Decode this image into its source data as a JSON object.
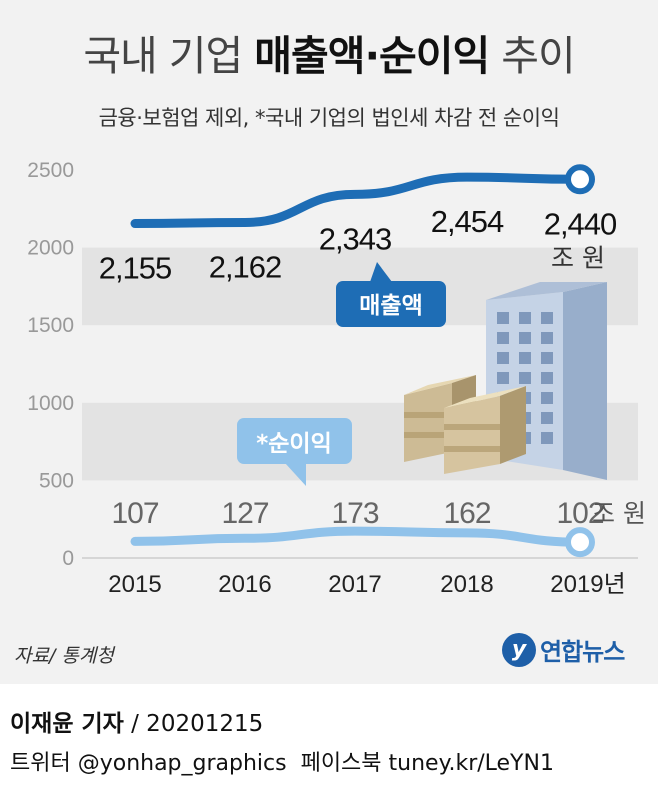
{
  "header": {
    "title_light_1": "국내 기업 ",
    "title_bold": "매출액·순이익",
    "title_light_2": " 추이",
    "subtitle": "금융·보험업 제외, *국내 기업의 법인세 차감 전 순이익"
  },
  "chart_data": {
    "type": "line",
    "categories": [
      "2015",
      "2016",
      "2017",
      "2018",
      "2019년"
    ],
    "ylim": [
      0,
      2500
    ],
    "yticks": [
      "0",
      "500",
      "1000",
      "1500",
      "2000",
      "2500"
    ],
    "ytick_values": [
      0,
      500,
      1000,
      1500,
      2000,
      2500
    ],
    "grid": "alternating bands",
    "series": [
      {
        "name": "매출액",
        "values": [
          2155,
          2162,
          2343,
          2454,
          2440
        ],
        "labels": [
          "2,155",
          "2,162",
          "2,343",
          "2,454",
          "2,440"
        ],
        "unit": "조 원",
        "color": "#1e6db5"
      },
      {
        "name": "*순이익",
        "values": [
          107,
          127,
          173,
          162,
          102
        ],
        "labels": [
          "107",
          "127",
          "173",
          "162",
          "102"
        ],
        "unit": "조 원",
        "color": "#90c2ea"
      }
    ]
  },
  "colors": {
    "background": "#f2f2f2",
    "band": "#e3e3e3",
    "revenue": "#1e6db5",
    "profit": "#90c2ea",
    "profit_label": "#666666"
  },
  "illustration": {
    "icon": "office-building-and-money-stacks-icon"
  },
  "footer": {
    "source": "자료/ 통계청",
    "logo_text": "연합뉴스",
    "reporter_name": "이재윤 기자",
    "reporter_date": " / 20201215",
    "social": "트위터 @yonhap_graphics  페이스북 tuney.kr/LeYN1"
  }
}
